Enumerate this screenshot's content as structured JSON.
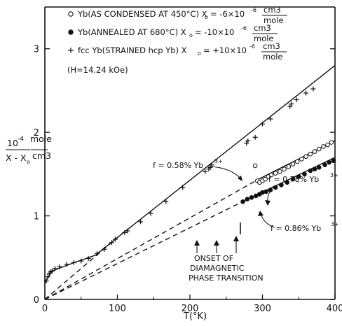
{
  "chart_data": {
    "type": "scatter",
    "xlabel": "T(°K)",
    "ylabel": {
      "prefix": "10",
      "exponent": "-4",
      "denominator": "X - X",
      "denominator_sub": "o",
      "unit_top": "mole",
      "unit_bottom": "cm3"
    },
    "xlim": [
      0,
      400
    ],
    "ylim": [
      0,
      3.5
    ],
    "xticks": [
      "0",
      "100",
      "200",
      "300",
      "400"
    ],
    "yticks": [
      "0",
      "1",
      "2",
      "3"
    ],
    "legend": {
      "placement": "top",
      "entries": [
        {
          "marker": "open-circle",
          "text": "Yb(AS CONDENSED AT 450°C) X",
          "sub": "o",
          "value": "= -6×10",
          "exp": "-6",
          "frac_top": "cm3",
          "frac_bottom": "mole"
        },
        {
          "marker": "filled-circle",
          "text": "Yb(ANNEALED AT 680°C) X",
          "sub": "o",
          "value": "= -10×10",
          "exp": "-6",
          "frac_top": "cm3",
          "frac_bottom": "mole"
        },
        {
          "marker": "plus",
          "text": "fcc Yb(STRAINED hcp Yb) X",
          "sub": "o",
          "value": "= +10×10",
          "exp": "-6",
          "frac_top": "cm3",
          "frac_bottom": "mole"
        }
      ],
      "field_note": "(H=14.24 kOe)"
    },
    "annotations": {
      "f_058": "f = 0.58% Yb",
      "f_078": "f = 0.78% Yb",
      "f_086": "f = 0.86% Yb",
      "ion_sup": "3+",
      "onset_lines": [
        "ONSET OF",
        "DIAMAGNETIC",
        "PHASE TRANSITION"
      ]
    },
    "series": [
      {
        "name": "fcc Yb (strained hcp Yb)",
        "marker": "plus",
        "points": [
          [
            2,
            0.22
          ],
          [
            4,
            0.27
          ],
          [
            6,
            0.31
          ],
          [
            8,
            0.33
          ],
          [
            10,
            0.34
          ],
          [
            14,
            0.37
          ],
          [
            20,
            0.39
          ],
          [
            30,
            0.42
          ],
          [
            40,
            0.44
          ],
          [
            50,
            0.46
          ],
          [
            60,
            0.49
          ],
          [
            72,
            0.55
          ],
          [
            82,
            0.6
          ],
          [
            92,
            0.68
          ],
          [
            97,
            0.72
          ],
          [
            110,
            0.8
          ],
          [
            114,
            0.82
          ],
          [
            132,
            0.93
          ],
          [
            146,
            1.03
          ],
          [
            167,
            1.17
          ],
          [
            190,
            1.34
          ],
          [
            221,
            1.53
          ],
          [
            226,
            1.56
          ],
          [
            228,
            1.58
          ],
          [
            230,
            1.61
          ],
          [
            278,
            1.87
          ],
          [
            280,
            1.9
          ],
          [
            290,
            1.94
          ],
          [
            300,
            2.1
          ],
          [
            311,
            2.16
          ],
          [
            338,
            2.31
          ],
          [
            340,
            2.34
          ],
          [
            347,
            2.39
          ],
          [
            360,
            2.47
          ],
          [
            370,
            2.52
          ]
        ]
      },
      {
        "name": "Yb (as condensed at 450°C)",
        "marker": "open-circle",
        "points": [
          [
            290,
            1.6
          ],
          [
            293,
            1.42
          ],
          [
            296,
            1.4
          ],
          [
            300,
            1.42
          ],
          [
            304,
            1.44
          ],
          [
            308,
            1.47
          ],
          [
            312,
            1.49
          ],
          [
            318,
            1.51
          ],
          [
            324,
            1.53
          ],
          [
            330,
            1.56
          ],
          [
            336,
            1.59
          ],
          [
            342,
            1.62
          ],
          [
            348,
            1.65
          ],
          [
            354,
            1.68
          ],
          [
            360,
            1.71
          ],
          [
            366,
            1.74
          ],
          [
            372,
            1.77
          ],
          [
            378,
            1.8
          ],
          [
            384,
            1.83
          ],
          [
            390,
            1.85
          ],
          [
            395,
            1.88
          ]
        ]
      },
      {
        "name": "Yb (annealed at 680°C)",
        "marker": "filled-circle",
        "points": [
          [
            273,
            1.17
          ],
          [
            279,
            1.2
          ],
          [
            285,
            1.22
          ],
          [
            291,
            1.24
          ],
          [
            296,
            1.26
          ],
          [
            300,
            1.28
          ],
          [
            305,
            1.29
          ],
          [
            311,
            1.31
          ],
          [
            318,
            1.34
          ],
          [
            326,
            1.37
          ],
          [
            334,
            1.4
          ],
          [
            342,
            1.44
          ],
          [
            350,
            1.47
          ],
          [
            358,
            1.5
          ],
          [
            366,
            1.54
          ],
          [
            372,
            1.56
          ],
          [
            378,
            1.58
          ],
          [
            386,
            1.61
          ],
          [
            392,
            1.64
          ],
          [
            398,
            1.66
          ]
        ]
      }
    ],
    "lines": [
      {
        "style": "solid",
        "points": [
          [
            0,
            0.2
          ],
          [
            10,
            0.34
          ],
          [
            40,
            0.44
          ],
          [
            70,
            0.53
          ],
          [
            100,
            0.74
          ],
          [
            400,
            2.8
          ]
        ]
      },
      {
        "style": "dashed",
        "points": [
          [
            0,
            0
          ],
          [
            108,
            0.8
          ]
        ]
      },
      {
        "style": "dashed",
        "points": [
          [
            0,
            0
          ],
          [
            295,
            1.44
          ]
        ]
      },
      {
        "style": "solid",
        "points": [
          [
            295,
            1.44
          ],
          [
            400,
            1.9
          ]
        ]
      },
      {
        "style": "dashed",
        "points": [
          [
            0,
            0
          ],
          [
            275,
            1.18
          ]
        ]
      },
      {
        "style": "solid",
        "points": [
          [
            275,
            1.18
          ],
          [
            400,
            1.7
          ]
        ]
      }
    ]
  }
}
